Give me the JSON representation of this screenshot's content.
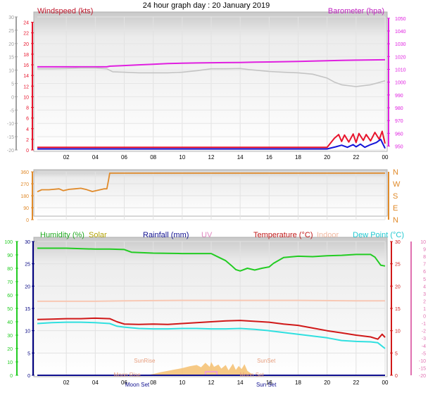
{
  "title": "24 hour graph day : 20 January 2019",
  "colors": {
    "windspeed": "#e8142c",
    "windavg": "#1414d8",
    "barometer": "#e020e0",
    "temp_gray": "#c4c4c4",
    "direction": "#e08a2a",
    "humidity": "#22cc22",
    "solar": "#c8b400",
    "rainfall": "#101090",
    "uv": "#f0a0d0",
    "temperature": "#d01818",
    "indoor": "#f8c8b4",
    "dewpoint": "#30e0e0",
    "solar_fill": "#f4c070",
    "outdoor_temp_left": "#888888"
  },
  "x_ticks": [
    "02",
    "04",
    "06",
    "08",
    "10",
    "12",
    "14",
    "16",
    "18",
    "20",
    "22",
    "00"
  ],
  "chart_data": [
    {
      "type": "line",
      "name": "top-panel",
      "left_label": "Windspeed (kts)",
      "right_label": "Barometer (hpa)",
      "left_axis_outer": {
        "ticks": [
          30,
          25,
          20,
          15,
          10,
          5,
          0,
          -5,
          -10,
          -15,
          -20
        ]
      },
      "left_axis_inner": {
        "ticks": [
          24,
          22,
          20,
          18,
          16,
          14,
          12,
          10,
          8,
          6,
          4,
          2,
          0
        ],
        "ylim": [
          0,
          25
        ]
      },
      "right_axis": {
        "ticks": [
          1050,
          1040,
          1030,
          1020,
          1010,
          1000,
          990,
          980,
          970,
          960,
          950
        ],
        "ylim": [
          947,
          1051
        ]
      },
      "series": [
        {
          "key": "barometer",
          "axis": "right",
          "x": [
            0,
            4.8,
            5,
            6,
            7,
            8,
            9,
            10,
            11,
            12,
            13,
            14,
            15,
            16,
            17,
            18,
            19,
            20,
            21,
            22,
            23,
            24
          ],
          "values": [
            1012,
            1012,
            1012.5,
            1013,
            1013.5,
            1014,
            1014.5,
            1014.8,
            1015,
            1015.2,
            1015.3,
            1015.4,
            1015.6,
            1015.8,
            1016,
            1016.2,
            1016.5,
            1016.7,
            1017,
            1017.2,
            1017.4,
            1017.5
          ]
        },
        {
          "key": "temp_gray",
          "axis": "outer",
          "x": [
            0,
            1,
            2,
            3,
            4,
            4.8,
            5.2,
            6,
            7,
            8,
            9,
            10,
            11,
            12,
            13,
            14,
            14.6,
            15,
            16,
            17,
            18,
            19,
            20,
            20.5,
            21,
            22,
            23,
            23.5,
            24
          ],
          "values": [
            10.5,
            10.5,
            10.6,
            10.8,
            10.8,
            10.5,
            9.4,
            9.2,
            9.0,
            9.0,
            9.0,
            9.2,
            9.8,
            10.5,
            10.5,
            10.6,
            10.2,
            10.0,
            9.5,
            9.2,
            9.0,
            8.5,
            7.0,
            5.5,
            4.5,
            3.8,
            4.5,
            5.2,
            6.0
          ]
        },
        {
          "key": "windspeed",
          "axis": "inner",
          "x": [
            0,
            19.5,
            20,
            20.5,
            20.8,
            21.0,
            21.2,
            21.5,
            21.8,
            22.0,
            22.2,
            22.5,
            22.7,
            23.0,
            23.3,
            23.6,
            23.8,
            24
          ],
          "values": [
            0.5,
            0.5,
            0.5,
            2.2,
            2.9,
            1.6,
            2.8,
            1.5,
            3.0,
            1.4,
            3.1,
            1.8,
            2.9,
            1.7,
            3.3,
            2.0,
            3.5,
            1.2
          ]
        },
        {
          "key": "windavg",
          "axis": "inner",
          "x": [
            0,
            19.5,
            20,
            20.6,
            21.0,
            21.4,
            21.8,
            22.0,
            22.3,
            22.6,
            23.0,
            23.4,
            23.7,
            24
          ],
          "values": [
            0.2,
            0.2,
            0.2,
            0.6,
            0.9,
            0.5,
            1.0,
            0.6,
            1.1,
            0.5,
            1.0,
            1.4,
            2.0,
            0.3
          ]
        }
      ]
    },
    {
      "type": "line",
      "name": "direction-panel",
      "left_axis": {
        "ticks": [
          360,
          270,
          180,
          90,
          0
        ],
        "ylim": [
          0,
          360
        ]
      },
      "right_axis": {
        "ticks": [
          "N",
          "W",
          "S",
          "E",
          "N"
        ]
      },
      "series": [
        {
          "key": "direction",
          "axis": "left",
          "x": [
            0,
            0.3,
            0.8,
            1.5,
            1.8,
            2.2,
            2.6,
            3.0,
            3.4,
            3.8,
            4.2,
            4.6,
            4.8,
            4.9,
            5.0,
            24
          ],
          "values": [
            210,
            225,
            225,
            232,
            218,
            228,
            232,
            236,
            226,
            212,
            222,
            232,
            232,
            290,
            350,
            350
          ]
        }
      ]
    },
    {
      "type": "line",
      "name": "bottom-panel",
      "labels": {
        "humidity": "Humidity (%)",
        "solar": "Solar",
        "rainfall": "Rainfall (mm)",
        "uv": "UV",
        "temperature": "Temperature (°C)",
        "indoor": "Indoor",
        "dewpoint": "Dew Point (°C)"
      },
      "left_axis_outer": {
        "ticks": [
          100,
          90,
          80,
          70,
          60,
          50,
          40,
          30,
          20,
          10,
          0
        ],
        "ylim": [
          0,
          100
        ]
      },
      "left_axis_inner": {
        "ticks": [
          30,
          25,
          20,
          15,
          10,
          5,
          0
        ],
        "ylim": [
          0,
          30
        ]
      },
      "right_axis_inner": {
        "ticks": [
          30,
          25,
          20,
          15,
          10,
          5,
          0
        ],
        "ylim": [
          0,
          30
        ]
      },
      "right_axis_outer": {
        "ticks": [
          10,
          9,
          8,
          7,
          6,
          5,
          4,
          3,
          2,
          1,
          0,
          -1,
          -2,
          -3,
          -4,
          -5,
          -10,
          -15,
          -20
        ]
      },
      "annotations": [
        {
          "text": "SunRise",
          "x": 7.4
        },
        {
          "text": "SunSet",
          "x": 15.8
        },
        {
          "text": "Moon Rise",
          "x": 6.2
        },
        {
          "text": "Moon Set",
          "x": 14.8
        }
      ],
      "x_axis_events": [
        {
          "text": "Moon Set",
          "x": 6.9
        },
        {
          "text": "Sun Set",
          "x": 15.8
        }
      ],
      "series": [
        {
          "key": "humidity",
          "axis": "inner",
          "x": [
            0,
            2,
            4,
            5,
            6,
            6.5,
            8,
            10,
            11,
            12,
            12.5,
            13,
            13.4,
            13.7,
            14,
            14.5,
            15,
            15.5,
            16,
            16.3,
            17,
            18,
            19,
            20,
            21,
            22,
            23,
            23.3,
            23.7,
            24
          ],
          "values": [
            28.5,
            28.5,
            28.3,
            28.3,
            28.2,
            27.6,
            27.4,
            27.3,
            27.3,
            27.3,
            26.5,
            25.7,
            24.6,
            23.7,
            23.4,
            24.0,
            23.6,
            24.0,
            24.3,
            25.1,
            26.4,
            26.7,
            26.6,
            26.8,
            26.9,
            27.1,
            27.1,
            26.5,
            24.7,
            24.5
          ]
        },
        {
          "key": "indoor",
          "axis": "inner",
          "x": [
            0,
            4,
            6,
            10,
            14,
            18,
            22,
            24
          ],
          "values": [
            16.6,
            16.6,
            16.7,
            16.8,
            16.8,
            16.8,
            16.7,
            16.7
          ]
        },
        {
          "key": "temperature",
          "axis": "inner",
          "x": [
            0,
            1,
            2,
            3,
            4,
            5,
            5.5,
            6,
            7,
            8,
            9,
            10,
            11,
            12,
            13,
            14,
            15,
            16,
            17,
            18,
            19,
            20,
            21,
            22,
            23,
            23.5,
            23.8,
            24
          ],
          "values": [
            12.5,
            12.6,
            12.7,
            12.7,
            12.8,
            12.7,
            12.0,
            11.5,
            11.4,
            11.5,
            11.4,
            11.6,
            11.8,
            12.0,
            12.2,
            12.3,
            12.1,
            11.9,
            11.5,
            11.2,
            10.6,
            10.0,
            9.5,
            9.0,
            8.6,
            8.1,
            9.2,
            8.5
          ]
        },
        {
          "key": "dewpoint",
          "axis": "inner",
          "x": [
            0,
            1,
            2,
            3,
            4,
            5,
            5.5,
            6,
            7,
            8,
            9,
            10,
            11,
            12,
            13,
            14,
            15,
            16,
            17,
            18,
            19,
            20,
            21,
            22,
            23,
            23.5,
            24
          ],
          "values": [
            11.6,
            11.8,
            11.9,
            11.9,
            11.8,
            11.6,
            11.0,
            10.8,
            10.5,
            10.4,
            10.4,
            10.5,
            10.5,
            10.4,
            10.4,
            10.5,
            10.3,
            10.0,
            9.6,
            9.2,
            8.8,
            8.4,
            7.8,
            7.6,
            7.5,
            7.3,
            6.0
          ]
        },
        {
          "key": "solar",
          "axis": "inner",
          "fill": true,
          "x": [
            7.5,
            8,
            8.5,
            9,
            9.5,
            10,
            10.5,
            11,
            11.3,
            11.6,
            11.9,
            12,
            12.2,
            12.5,
            12.7,
            13,
            13.2,
            13.5,
            13.7,
            13.9,
            14.1,
            14.3,
            14.5,
            14.8,
            15
          ],
          "values": [
            0,
            0.3,
            0.7,
            1.0,
            1.3,
            1.6,
            2.0,
            2.3,
            1.8,
            2.8,
            1.9,
            3.0,
            1.9,
            2.4,
            1.5,
            2.3,
            1.1,
            2.6,
            1.2,
            2.1,
            1.4,
            2.5,
            1.0,
            0.3,
            0
          ]
        },
        {
          "key": "uv",
          "axis": "inner",
          "x": [
            11.6,
            11.6,
            12.4,
            12.4
          ],
          "values": [
            0,
            0.8,
            0.8,
            0
          ]
        },
        {
          "key": "rainfall",
          "axis": "inner",
          "x": [
            0,
            24
          ],
          "values": [
            0,
            0
          ]
        }
      ]
    }
  ]
}
